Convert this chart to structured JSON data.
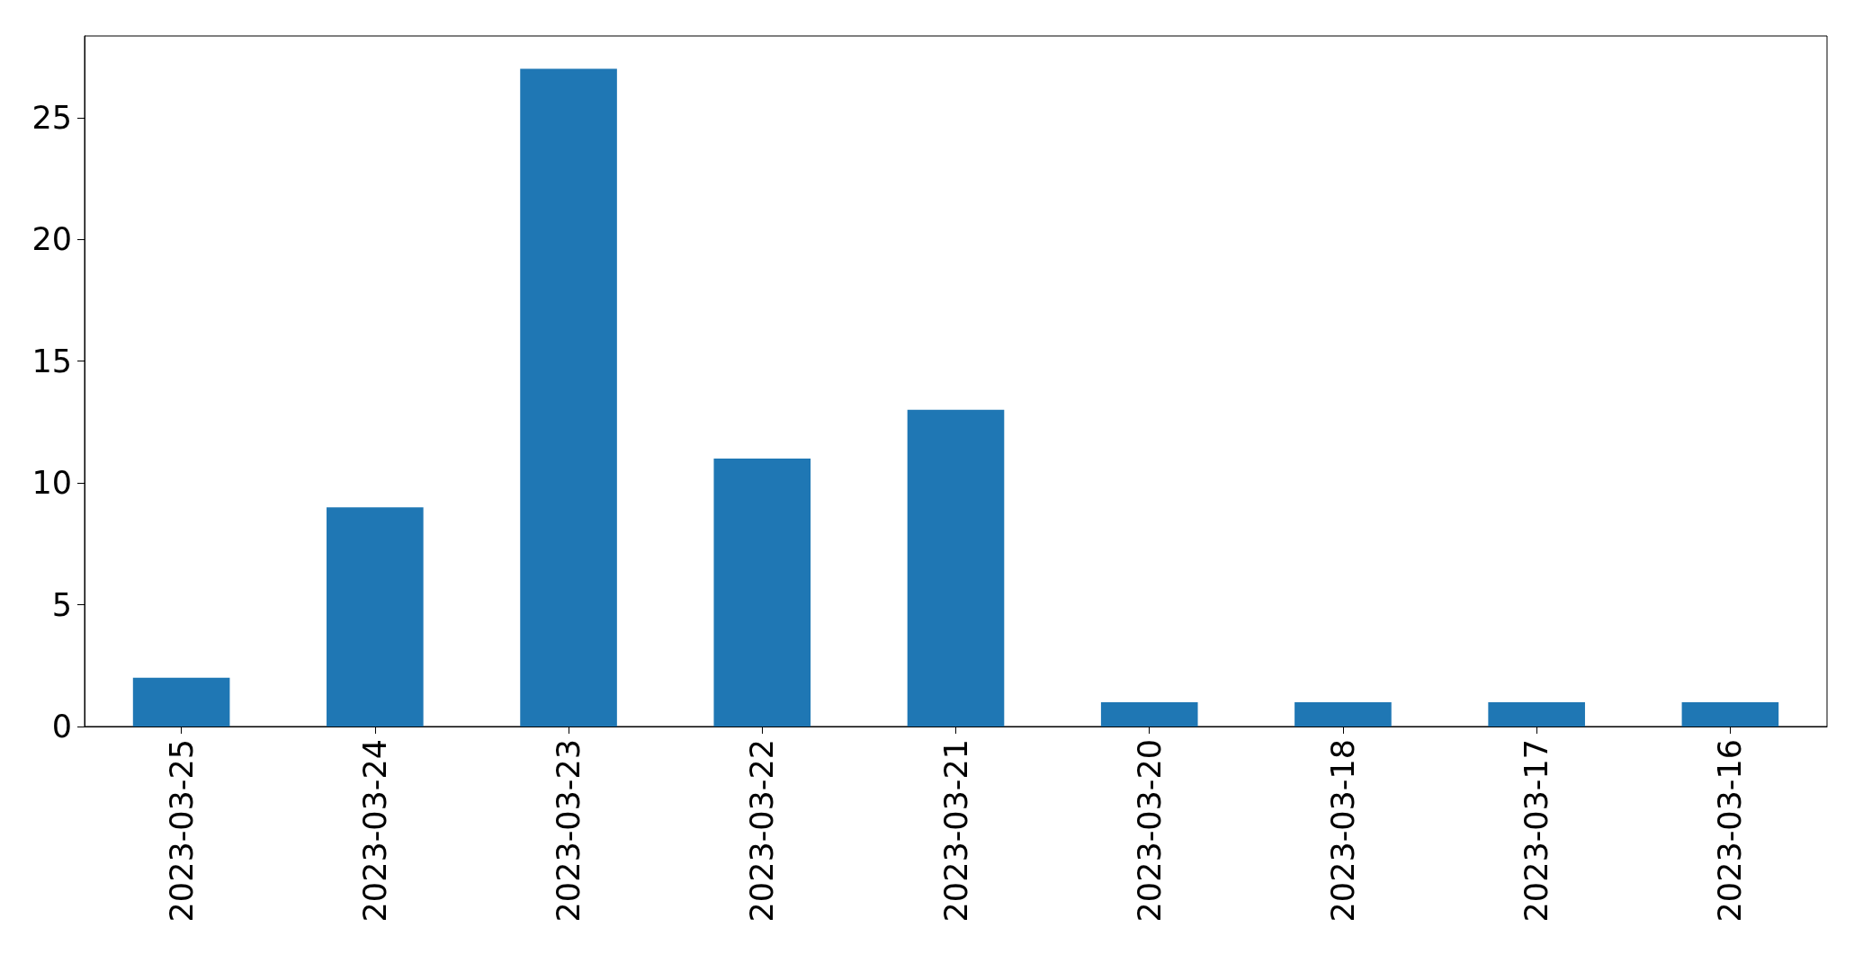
{
  "chart_data": {
    "type": "bar",
    "categories": [
      "2023-03-25",
      "2023-03-24",
      "2023-03-23",
      "2023-03-22",
      "2023-03-21",
      "2023-03-20",
      "2023-03-18",
      "2023-03-17",
      "2023-03-16"
    ],
    "values": [
      2,
      9,
      27,
      11,
      13,
      1,
      1,
      1,
      1
    ],
    "color": "#1f77b4",
    "ylim": [
      0,
      28.35
    ],
    "yticks": [
      0,
      5,
      10,
      15,
      20,
      25
    ],
    "grid": false
  }
}
